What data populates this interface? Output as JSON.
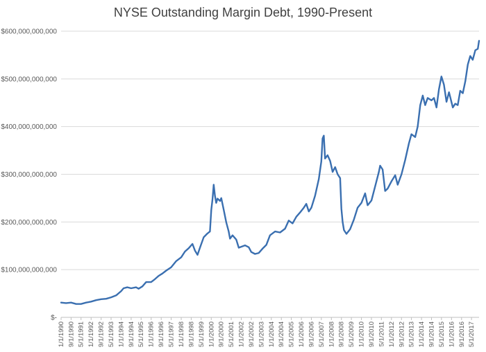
{
  "chart_data": {
    "type": "line",
    "title": "NYSE Outstanding Margin Debt, 1990-Present",
    "xlabel": "",
    "ylabel": "",
    "ylim": [
      0,
      600000000000
    ],
    "grid": true,
    "legend": "none",
    "colors": {
      "line": "#3a6fb0",
      "grid": "#d9d9d9",
      "text": "#595959",
      "title": "#404040"
    },
    "y_ticks": [
      "$-",
      "$100,000,000,000",
      "$200,000,000,000",
      "$300,000,000,000",
      "$400,000,000,000",
      "$500,000,000,000",
      "$600,000,000,000"
    ],
    "x_ticks": [
      "1/1/1990",
      "9/1/1990",
      "5/1/1991",
      "1/1/1992",
      "9/1/1992",
      "5/1/1993",
      "1/1/1994",
      "9/1/1994",
      "5/1/1995",
      "1/1/1996",
      "9/1/1996",
      "5/1/1997",
      "1/1/1998",
      "9/1/1998",
      "5/1/1999",
      "1/1/2000",
      "9/1/2000",
      "5/1/2001",
      "1/1/2002",
      "9/1/2002",
      "5/1/2003",
      "1/1/2004",
      "9/1/2004",
      "5/1/2005",
      "1/1/2006",
      "9/1/2006",
      "5/1/2007",
      "1/1/2008",
      "9/1/2008",
      "5/1/2009",
      "1/1/2010",
      "9/1/2010",
      "5/1/2011",
      "1/1/2012",
      "9/1/2012",
      "5/1/2013",
      "1/1/2014",
      "9/1/2014",
      "5/1/2015",
      "1/1/2016",
      "9/1/2016",
      "5/1/2017"
    ],
    "series": [
      {
        "points": [
          [
            "1990-01-01",
            31
          ],
          [
            "1990-05-01",
            30
          ],
          [
            "1990-09-01",
            31
          ],
          [
            "1991-01-01",
            28
          ],
          [
            "1991-05-01",
            28
          ],
          [
            "1991-09-01",
            31
          ],
          [
            "1992-01-01",
            33
          ],
          [
            "1992-05-01",
            36
          ],
          [
            "1992-09-01",
            38
          ],
          [
            "1993-01-01",
            39
          ],
          [
            "1993-05-01",
            42
          ],
          [
            "1993-09-01",
            46
          ],
          [
            "1994-01-01",
            55
          ],
          [
            "1994-03-01",
            61
          ],
          [
            "1994-06-01",
            63
          ],
          [
            "1994-09-01",
            61
          ],
          [
            "1995-01-01",
            63
          ],
          [
            "1995-03-01",
            60
          ],
          [
            "1995-06-01",
            65
          ],
          [
            "1995-09-01",
            74
          ],
          [
            "1996-01-01",
            74
          ],
          [
            "1996-04-01",
            80
          ],
          [
            "1996-07-01",
            87
          ],
          [
            "1996-10-01",
            92
          ],
          [
            "1997-01-01",
            98
          ],
          [
            "1997-05-01",
            105
          ],
          [
            "1997-09-01",
            118
          ],
          [
            "1998-01-01",
            126
          ],
          [
            "1998-04-01",
            138
          ],
          [
            "1998-07-01",
            145
          ],
          [
            "1998-10-01",
            154
          ],
          [
            "1998-12-01",
            140
          ],
          [
            "1999-02-01",
            131
          ],
          [
            "1999-04-01",
            146
          ],
          [
            "1999-07-01",
            168
          ],
          [
            "1999-10-01",
            176
          ],
          [
            "1999-12-01",
            180
          ],
          [
            "2000-01-01",
            225
          ],
          [
            "2000-02-01",
            248
          ],
          [
            "2000-03-01",
            278
          ],
          [
            "2000-04-01",
            255
          ],
          [
            "2000-05-01",
            240
          ],
          [
            "2000-06-01",
            249
          ],
          [
            "2000-08-01",
            244
          ],
          [
            "2000-09-01",
            250
          ],
          [
            "2000-11-01",
            225
          ],
          [
            "2001-01-01",
            199
          ],
          [
            "2001-03-01",
            180
          ],
          [
            "2001-04-01",
            165
          ],
          [
            "2001-06-01",
            172
          ],
          [
            "2001-09-01",
            163
          ],
          [
            "2001-11-01",
            146
          ],
          [
            "2002-01-01",
            148
          ],
          [
            "2002-04-01",
            151
          ],
          [
            "2002-07-01",
            147
          ],
          [
            "2002-09-01",
            137
          ],
          [
            "2002-12-01",
            133
          ],
          [
            "2003-03-01",
            135
          ],
          [
            "2003-06-01",
            144
          ],
          [
            "2003-09-01",
            152
          ],
          [
            "2003-12-01",
            172
          ],
          [
            "2004-04-01",
            180
          ],
          [
            "2004-08-01",
            178
          ],
          [
            "2004-12-01",
            186
          ],
          [
            "2005-03-01",
            203
          ],
          [
            "2005-06-01",
            197
          ],
          [
            "2005-09-01",
            211
          ],
          [
            "2005-12-01",
            220
          ],
          [
            "2006-03-01",
            230
          ],
          [
            "2006-05-01",
            238
          ],
          [
            "2006-07-01",
            222
          ],
          [
            "2006-09-01",
            230
          ],
          [
            "2006-12-01",
            255
          ],
          [
            "2007-03-01",
            290
          ],
          [
            "2007-05-01",
            327
          ],
          [
            "2007-06-01",
            375
          ],
          [
            "2007-07-01",
            381
          ],
          [
            "2007-08-01",
            333
          ],
          [
            "2007-10-01",
            340
          ],
          [
            "2007-12-01",
            328
          ],
          [
            "2008-02-01",
            305
          ],
          [
            "2008-04-01",
            315
          ],
          [
            "2008-06-01",
            300
          ],
          [
            "2008-08-01",
            292
          ],
          [
            "2008-09-01",
            228
          ],
          [
            "2008-10-01",
            200
          ],
          [
            "2008-11-01",
            183
          ],
          [
            "2009-01-01",
            175
          ],
          [
            "2009-04-01",
            185
          ],
          [
            "2009-07-01",
            205
          ],
          [
            "2009-10-01",
            230
          ],
          [
            "2010-01-01",
            240
          ],
          [
            "2010-04-01",
            260
          ],
          [
            "2010-06-01",
            235
          ],
          [
            "2010-09-01",
            245
          ],
          [
            "2010-12-01",
            275
          ],
          [
            "2011-03-01",
            305
          ],
          [
            "2011-04-01",
            318
          ],
          [
            "2011-06-01",
            310
          ],
          [
            "2011-08-01",
            265
          ],
          [
            "2011-10-01",
            270
          ],
          [
            "2012-01-01",
            285
          ],
          [
            "2012-04-01",
            298
          ],
          [
            "2012-06-01",
            278
          ],
          [
            "2012-09-01",
            300
          ],
          [
            "2012-12-01",
            330
          ],
          [
            "2013-03-01",
            365
          ],
          [
            "2013-05-01",
            384
          ],
          [
            "2013-08-01",
            378
          ],
          [
            "2013-10-01",
            400
          ],
          [
            "2013-12-01",
            445
          ],
          [
            "2014-02-01",
            465
          ],
          [
            "2014-04-01",
            445
          ],
          [
            "2014-06-01",
            460
          ],
          [
            "2014-09-01",
            455
          ],
          [
            "2014-11-01",
            460
          ],
          [
            "2015-01-01",
            440
          ],
          [
            "2015-03-01",
            478
          ],
          [
            "2015-05-01",
            505
          ],
          [
            "2015-07-01",
            488
          ],
          [
            "2015-09-01",
            452
          ],
          [
            "2015-11-01",
            472
          ],
          [
            "2016-02-01",
            440
          ],
          [
            "2016-04-01",
            448
          ],
          [
            "2016-06-01",
            445
          ],
          [
            "2016-08-01",
            475
          ],
          [
            "2016-10-01",
            470
          ],
          [
            "2016-12-01",
            495
          ],
          [
            "2017-02-01",
            530
          ],
          [
            "2017-04-01",
            548
          ],
          [
            "2017-06-01",
            540
          ],
          [
            "2017-08-01",
            560
          ],
          [
            "2017-10-01",
            563
          ],
          [
            "2017-11-01",
            580
          ]
        ]
      }
    ]
  }
}
